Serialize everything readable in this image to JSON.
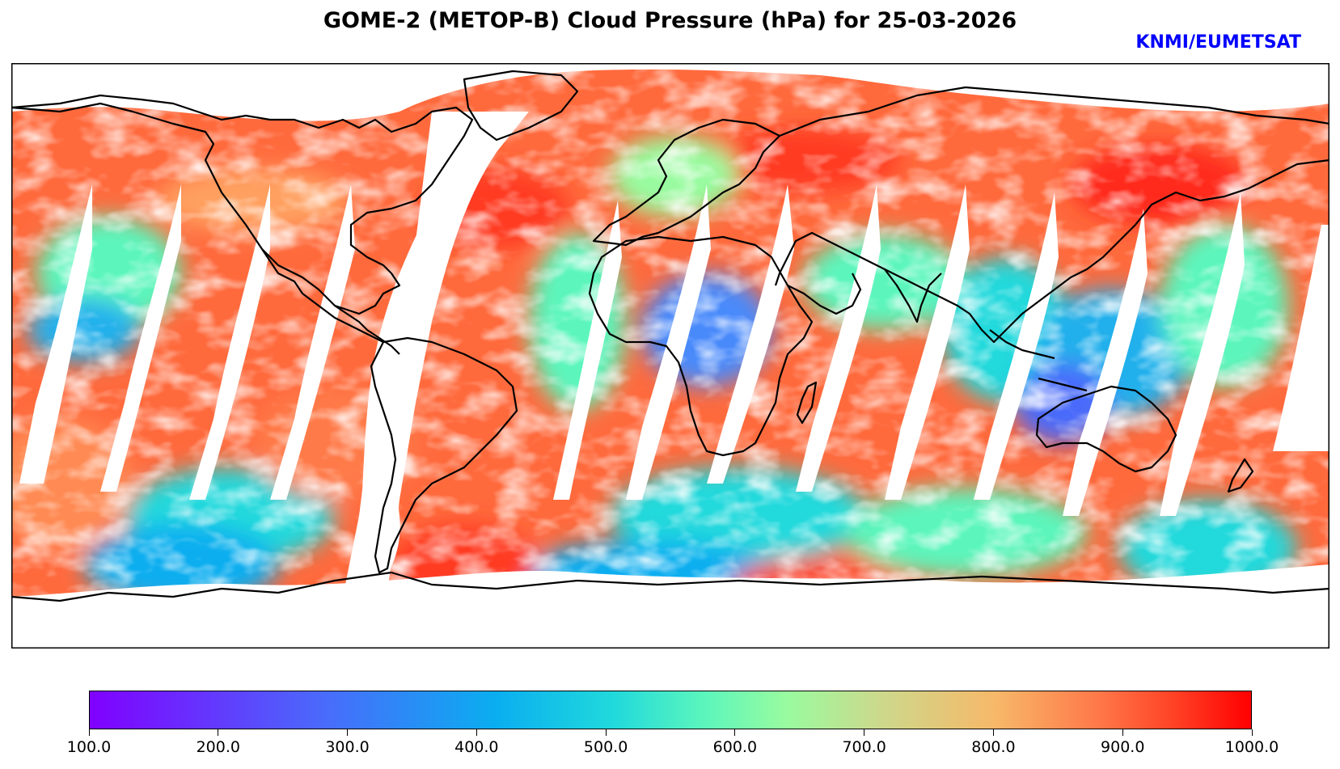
{
  "title": "GOME-2 (METOP-B) Cloud Pressure (hPa) for 25-03-2026",
  "credit": "KNMI/EUMETSAT",
  "colors": {
    "credit": "#0000ff",
    "coastline": "#000000",
    "gap": "#ffffff",
    "colormap": [
      "#8000ff",
      "#4a6afb",
      "#0aaef0",
      "#20d9dc",
      "#5cf6bc",
      "#99fb9f",
      "#ccd98c",
      "#f7b869",
      "#ff7748",
      "#ff4528",
      "#ff0000"
    ]
  },
  "colorbar": {
    "min": 100.0,
    "max": 1000.0,
    "ticks": [
      "100.0",
      "200.0",
      "300.0",
      "400.0",
      "500.0",
      "600.0",
      "700.0",
      "800.0",
      "900.0",
      "1000.0"
    ]
  },
  "chart_data": {
    "type": "heatmap",
    "title": "GOME-2 (METOP-B) Cloud Pressure (hPa) for 25-03-2026",
    "variable": "Cloud Pressure",
    "units": "hPa",
    "value_range": [
      100.0,
      1000.0
    ],
    "projection": "plate carree",
    "longitude_range": [
      -180,
      180
    ],
    "latitude_range": [
      -90,
      90
    ],
    "date": "25-03-2026",
    "instrument": "GOME-2 (METOP-B)"
  }
}
